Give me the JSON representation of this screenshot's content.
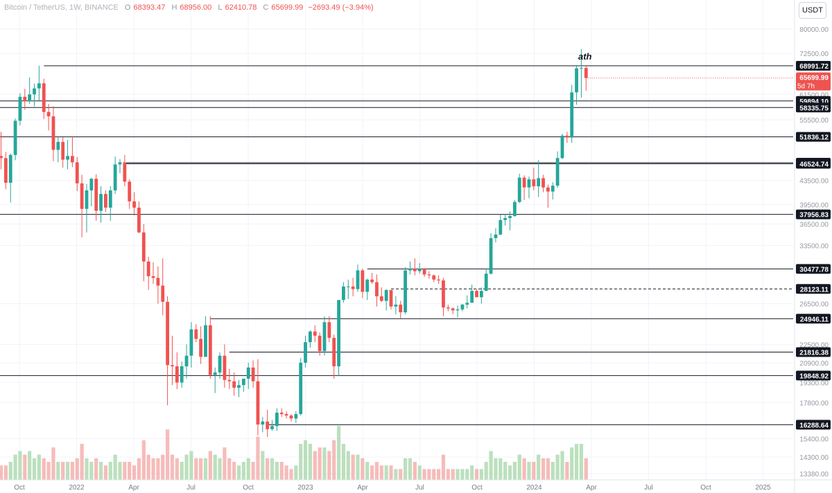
{
  "header": {
    "symbol": "Bitcoin / TetherUS, 1W, BINANCE",
    "open_key": "O",
    "open": "68393.47",
    "high_key": "H",
    "high": "68956.00",
    "low_key": "L",
    "low": "62410.78",
    "close_key": "C",
    "close": "65699.99",
    "change": "−2693.49 (−3.94%)",
    "currency_button": "USDT"
  },
  "colors": {
    "up": "#26a69a",
    "down": "#ef5350",
    "volume_up": "#a5d6a7",
    "volume_down": "#f3a6a3",
    "level_line": "#131722",
    "grid": "#f0f3fa"
  },
  "chart_data": {
    "type": "candlestick",
    "log_scale": true,
    "y_range": [
      13380,
      82000
    ],
    "y_ticks": [
      {
        "label": "80000.00",
        "value": 80000
      },
      {
        "label": "72500.00",
        "value": 72500
      },
      {
        "label": "61500.00",
        "value": 61500
      },
      {
        "label": "55500.00",
        "value": 55500
      },
      {
        "label": "43500.00",
        "value": 43500
      },
      {
        "label": "39500.00",
        "value": 39500
      },
      {
        "label": "36500.00",
        "value": 36500
      },
      {
        "label": "33500.00",
        "value": 33500
      },
      {
        "label": "26500.00",
        "value": 26500
      },
      {
        "label": "22500.00",
        "value": 22500
      },
      {
        "label": "20900.00",
        "value": 20900
      },
      {
        "label": "19300.00",
        "value": 19300
      },
      {
        "label": "17800.00",
        "value": 17800
      },
      {
        "label": "15400.00",
        "value": 15400
      },
      {
        "label": "14300.00",
        "value": 14300
      },
      {
        "label": "13380.00",
        "value": 13380
      }
    ],
    "x_ticks": [
      "Oct",
      "2022",
      "Apr",
      "Jul",
      "Oct",
      "2023",
      "Apr",
      "Jul",
      "Oct",
      "2024",
      "Apr",
      "Jul",
      "Oct",
      "2025"
    ],
    "levels": [
      {
        "label": "68991.72",
        "value": 68991.72,
        "style": "solid",
        "start_week": 9
      },
      {
        "label": "59894.10",
        "value": 59894.1,
        "style": "solid",
        "start_week": 0
      },
      {
        "label": "58335.75",
        "value": 58335.75,
        "style": "solid",
        "start_week": 0
      },
      {
        "label": "51836.12",
        "value": 51836.12,
        "style": "solid",
        "start_week": 0
      },
      {
        "label": "46721.74",
        "value": 46721.74,
        "style": "solid",
        "start_week": 26
      },
      {
        "label": "46524.74",
        "value": 46524.74,
        "style": "solid",
        "start_week": 26
      },
      {
        "label": "37956.83",
        "value": 37956.83,
        "style": "solid",
        "start_week": 0
      },
      {
        "label": "30477.78",
        "value": 30477.78,
        "style": "solid",
        "start_week": 77
      },
      {
        "label": "28123.11",
        "value": 28123.11,
        "style": "dashed",
        "start_week": 82
      },
      {
        "label": "24946.11",
        "value": 24946.11,
        "style": "solid",
        "start_week": 44
      },
      {
        "label": "21816.38",
        "value": 21816.38,
        "style": "solid",
        "start_week": 48
      },
      {
        "label": "19848.92",
        "value": 19848.92,
        "style": "solid",
        "start_week": 0
      },
      {
        "label": "16288.64",
        "value": 16288.64,
        "style": "solid",
        "start_week": 56
      }
    ],
    "current_price": {
      "label": "65699.99",
      "countdown": "5d 7h",
      "value": 65699.99
    },
    "annotation": {
      "text": "ath"
    },
    "candles": [
      [
        48000,
        52900,
        45500,
        47600,
        4
      ],
      [
        47600,
        48800,
        42000,
        43100,
        4
      ],
      [
        43100,
        48500,
        39800,
        48200,
        5
      ],
      [
        48200,
        55800,
        47200,
        55300,
        7
      ],
      [
        55300,
        61800,
        54300,
        60900,
        8
      ],
      [
        60900,
        62900,
        57800,
        59800,
        7
      ],
      [
        59800,
        65900,
        59200,
        61500,
        8
      ],
      [
        61500,
        64200,
        58600,
        63000,
        6
      ],
      [
        63000,
        69000,
        60000,
        64300,
        7
      ],
      [
        64300,
        65500,
        55700,
        57300,
        6
      ],
      [
        57300,
        59200,
        53200,
        56300,
        5
      ],
      [
        56300,
        58600,
        47000,
        49200,
        9
      ],
      [
        49200,
        52000,
        46800,
        50800,
        5
      ],
      [
        50800,
        51800,
        45800,
        47300,
        5
      ],
      [
        47300,
        51200,
        45500,
        48000,
        5
      ],
      [
        48000,
        52000,
        45900,
        46800,
        5
      ],
      [
        46800,
        47800,
        41700,
        43000,
        6
      ],
      [
        43000,
        44500,
        34600,
        38800,
        10
      ],
      [
        38800,
        42900,
        35300,
        41800,
        6
      ],
      [
        41800,
        44000,
        39200,
        43800,
        5
      ],
      [
        43800,
        44600,
        37000,
        38500,
        6
      ],
      [
        38500,
        42500,
        36700,
        41200,
        5
      ],
      [
        41200,
        41800,
        38300,
        39000,
        4
      ],
      [
        39000,
        42500,
        37000,
        41800,
        5
      ],
      [
        41800,
        47900,
        41200,
        46400,
        7
      ],
      [
        46400,
        47400,
        44800,
        46800,
        5
      ],
      [
        46800,
        48200,
        42500,
        43300,
        5
      ],
      [
        43300,
        43700,
        38800,
        40000,
        5
      ],
      [
        40000,
        41500,
        37800,
        39000,
        4
      ],
      [
        39000,
        40000,
        35200,
        35300,
        6
      ],
      [
        35300,
        36500,
        29000,
        31400,
        11
      ],
      [
        31400,
        32000,
        28000,
        29600,
        7
      ],
      [
        29600,
        31300,
        28700,
        29400,
        6
      ],
      [
        29400,
        30800,
        26500,
        28500,
        6
      ],
      [
        28500,
        31800,
        25300,
        26700,
        7
      ],
      [
        26700,
        27300,
        17600,
        20700,
        14
      ],
      [
        20700,
        23300,
        19100,
        20600,
        7
      ],
      [
        20600,
        21800,
        18800,
        19300,
        6
      ],
      [
        19300,
        21000,
        18900,
        20600,
        5
      ],
      [
        20600,
        22500,
        19600,
        21500,
        7
      ],
      [
        21500,
        24600,
        20500,
        23900,
        8
      ],
      [
        23900,
        24400,
        22700,
        23000,
        6
      ],
      [
        23000,
        24200,
        20800,
        21400,
        6
      ],
      [
        21400,
        25200,
        21400,
        24300,
        6
      ],
      [
        24300,
        25200,
        19600,
        19900,
        8
      ],
      [
        19900,
        20500,
        18500,
        20100,
        7
      ],
      [
        20100,
        21800,
        19600,
        21500,
        6
      ],
      [
        21500,
        22500,
        18900,
        19500,
        9
      ],
      [
        19500,
        20400,
        18800,
        19400,
        6
      ],
      [
        19400,
        20100,
        18300,
        18900,
        5
      ],
      [
        18900,
        19500,
        18200,
        19100,
        4
      ],
      [
        19100,
        19600,
        18600,
        19600,
        5
      ],
      [
        19600,
        20900,
        18800,
        20500,
        6
      ],
      [
        20500,
        21100,
        18900,
        19400,
        5
      ],
      [
        19400,
        21200,
        15600,
        16300,
        12
      ],
      [
        16300,
        16800,
        15800,
        16500,
        8
      ],
      [
        16500,
        17300,
        15500,
        16000,
        6
      ],
      [
        16000,
        16600,
        15900,
        16200,
        6
      ],
      [
        16200,
        17400,
        15900,
        17100,
        5
      ],
      [
        17100,
        17400,
        16800,
        17000,
        5
      ],
      [
        17000,
        17200,
        16700,
        16900,
        4
      ],
      [
        16900,
        17000,
        16500,
        16700,
        3
      ],
      [
        16700,
        17200,
        16400,
        17000,
        4
      ],
      [
        17000,
        21300,
        16900,
        20900,
        10
      ],
      [
        20900,
        23300,
        20500,
        22700,
        11
      ],
      [
        22700,
        23800,
        22200,
        23700,
        10
      ],
      [
        23700,
        24300,
        22700,
        23300,
        8
      ],
      [
        23300,
        23600,
        21500,
        21900,
        9
      ],
      [
        21900,
        25200,
        21500,
        24600,
        9
      ],
      [
        24600,
        25200,
        22700,
        23100,
        8
      ],
      [
        23100,
        23400,
        19600,
        20600,
        11
      ],
      [
        20600,
        26500,
        19800,
        26900,
        15
      ],
      [
        26900,
        28900,
        26600,
        28400,
        10
      ],
      [
        28400,
        29200,
        27000,
        28400,
        8
      ],
      [
        28400,
        29400,
        27300,
        28100,
        7
      ],
      [
        28100,
        31000,
        27800,
        30300,
        7
      ],
      [
        30300,
        30500,
        27100,
        27800,
        6
      ],
      [
        27800,
        29300,
        26900,
        29200,
        5
      ],
      [
        29200,
        30000,
        28700,
        28900,
        4
      ],
      [
        28900,
        29800,
        26200,
        27300,
        5
      ],
      [
        27300,
        28300,
        26700,
        26800,
        4
      ],
      [
        26800,
        28100,
        25800,
        28000,
        4
      ],
      [
        28000,
        28000,
        25900,
        26200,
        4
      ],
      [
        26200,
        27300,
        25400,
        26400,
        3
      ],
      [
        26400,
        26800,
        25000,
        25600,
        3
      ],
      [
        25600,
        30700,
        25400,
        30300,
        6
      ],
      [
        30300,
        31400,
        29800,
        30500,
        6
      ],
      [
        30500,
        31800,
        29700,
        30200,
        5
      ],
      [
        30200,
        31200,
        29900,
        30500,
        4
      ],
      [
        30500,
        30600,
        29500,
        29800,
        3
      ],
      [
        29800,
        30200,
        29300,
        29700,
        3
      ],
      [
        29700,
        29800,
        28900,
        29200,
        3
      ],
      [
        29200,
        29700,
        28700,
        29100,
        3
      ],
      [
        29100,
        29400,
        25200,
        26100,
        7
      ],
      [
        26100,
        26400,
        25700,
        26000,
        3
      ],
      [
        26000,
        26100,
        25400,
        25800,
        3
      ],
      [
        25800,
        26300,
        25100,
        25900,
        3
      ],
      [
        25900,
        26500,
        25700,
        26400,
        3
      ],
      [
        26400,
        27400,
        26000,
        26600,
        3
      ],
      [
        26600,
        28600,
        26600,
        27900,
        4
      ],
      [
        27900,
        28100,
        27200,
        27200,
        3
      ],
      [
        27200,
        28300,
        26500,
        27900,
        3
      ],
      [
        27900,
        30500,
        27900,
        29900,
        5
      ],
      [
        29900,
        35200,
        29800,
        34500,
        8
      ],
      [
        34500,
        35900,
        33900,
        35000,
        6
      ],
      [
        35000,
        37900,
        34900,
        37100,
        6
      ],
      [
        37100,
        38000,
        36300,
        37400,
        5
      ],
      [
        37400,
        38400,
        35600,
        37700,
        4
      ],
      [
        37700,
        40200,
        37600,
        39900,
        5
      ],
      [
        39900,
        44700,
        39700,
        44000,
        7
      ],
      [
        44000,
        44400,
        40200,
        42300,
        6
      ],
      [
        42300,
        44200,
        40500,
        43700,
        5
      ],
      [
        43700,
        45800,
        41800,
        42500,
        5
      ],
      [
        42500,
        47200,
        40700,
        43900,
        7
      ],
      [
        43900,
        44500,
        41500,
        42300,
        6
      ],
      [
        42300,
        42800,
        39000,
        41600,
        6
      ],
      [
        41600,
        43200,
        40300,
        42600,
        5
      ],
      [
        42600,
        48900,
        42200,
        47600,
        7
      ],
      [
        47600,
        52500,
        47400,
        52100,
        8
      ],
      [
        52100,
        52900,
        50600,
        51700,
        5
      ],
      [
        51700,
        63900,
        50600,
        62000,
        9
      ],
      [
        62000,
        69200,
        59000,
        68300,
        10
      ],
      [
        68300,
        73800,
        60700,
        68400,
        10
      ],
      [
        68400,
        68956,
        62410.78,
        65699.99,
        6
      ]
    ]
  }
}
